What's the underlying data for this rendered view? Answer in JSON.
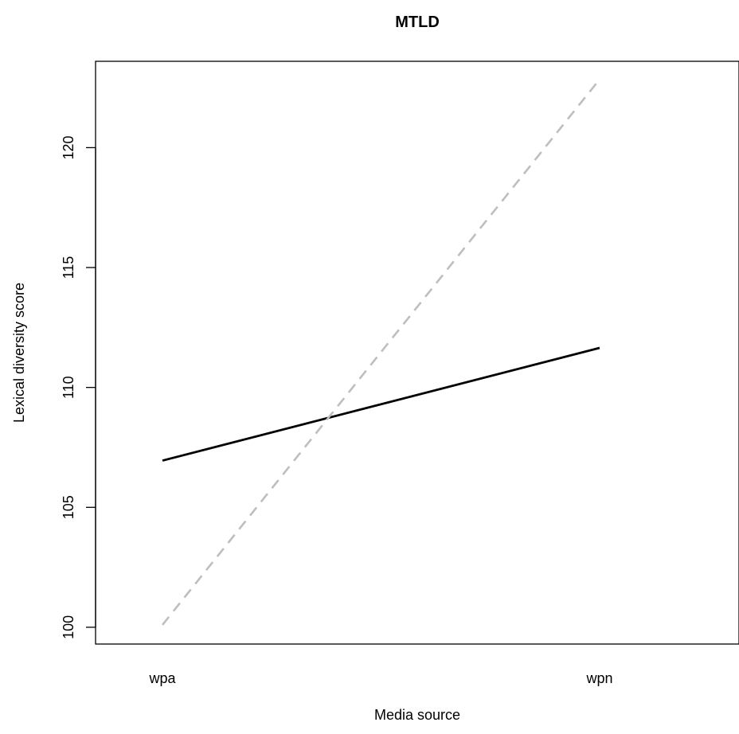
{
  "chart_data": {
    "type": "line",
    "title": "MTLD",
    "xlabel": "Media source",
    "ylabel": "Lexical diversity score",
    "categories": [
      "wpa",
      "wpn"
    ],
    "yticks": [
      100,
      105,
      110,
      115,
      120
    ],
    "ylim": [
      99.3,
      123.6
    ],
    "grid": false,
    "series": [
      {
        "values": [
          106.95,
          111.65
        ],
        "color": "#000000",
        "style": "solid"
      },
      {
        "values": [
          100.1,
          122.85
        ],
        "color": "#bebebe",
        "style": "dashed"
      }
    ]
  }
}
